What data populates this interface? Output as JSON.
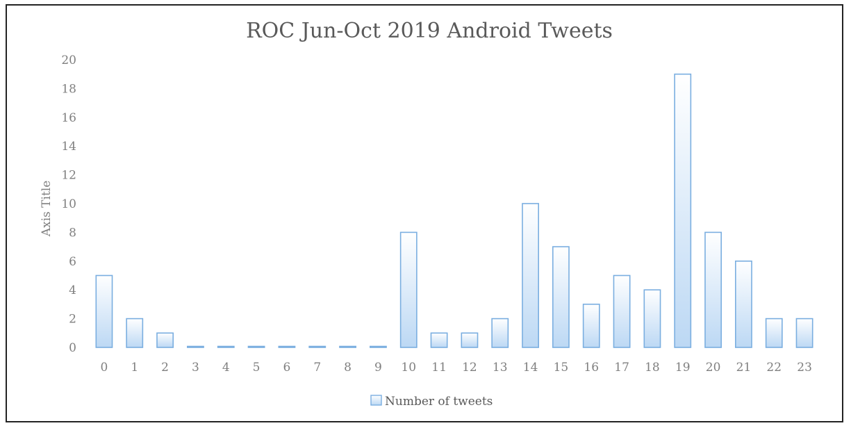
{
  "chart_data": {
    "type": "bar",
    "title": "ROC Jun-Oct 2019 Android Tweets",
    "xlabel": "",
    "ylabel": "Axis Title",
    "categories": [
      "0",
      "1",
      "2",
      "3",
      "4",
      "5",
      "6",
      "7",
      "8",
      "9",
      "10",
      "11",
      "12",
      "13",
      "14",
      "15",
      "16",
      "17",
      "18",
      "19",
      "20",
      "21",
      "22",
      "23"
    ],
    "series": [
      {
        "name": "Number of tweets",
        "values": [
          5,
          2,
          1,
          0,
          0,
          0,
          0,
          0,
          0,
          0,
          8,
          1,
          1,
          2,
          10,
          7,
          3,
          5,
          4,
          19,
          8,
          6,
          2,
          2
        ]
      }
    ],
    "ylim": [
      0,
      20
    ],
    "yticks": [
      "0",
      "2",
      "4",
      "6",
      "8",
      "10",
      "12",
      "14",
      "16",
      "18",
      "20"
    ],
    "grid": false,
    "legend_position": "bottom",
    "colors": {
      "bar_stroke": "#7aaee0",
      "bar_fill_top": "#ffffff",
      "bar_fill_bottom": "#bcd8f4"
    }
  }
}
